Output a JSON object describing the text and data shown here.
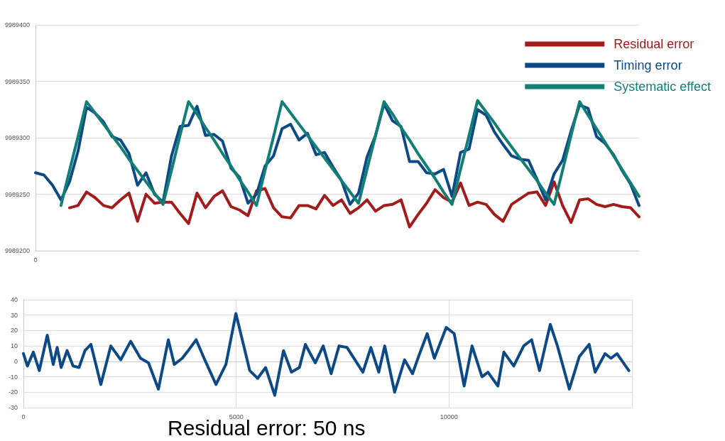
{
  "chart_data": [
    {
      "type": "line",
      "categories": [
        "0",
        null,
        null,
        null,
        null,
        null,
        null,
        null,
        null,
        null,
        null,
        null,
        null,
        null,
        null,
        null,
        null,
        null,
        null,
        null,
        null,
        null,
        null,
        null,
        null,
        null,
        null,
        null,
        null,
        null,
        null,
        null,
        null,
        null,
        null,
        null,
        null,
        null,
        null,
        null,
        null,
        null,
        null,
        null,
        null,
        null,
        null,
        null,
        null,
        null,
        null,
        null,
        null,
        null,
        null,
        null,
        null,
        null,
        null,
        null,
        null,
        null,
        null,
        null,
        null,
        null,
        null,
        null,
        null,
        null,
        null,
        null
      ],
      "ylim": [
        9989200,
        9989400
      ],
      "yticks": [
        9989200,
        9989250,
        9989300,
        9989350,
        9989400
      ],
      "grid": "y",
      "legend": "top right",
      "marker": "none",
      "series": [
        {
          "name": "Residual error",
          "color": "#a31c1c",
          "values": [
            null,
            null,
            null,
            null,
            9989238,
            9989240,
            9989252,
            9989247,
            9989240,
            9989238,
            9989245,
            9989251,
            9989226,
            9989250,
            9989242,
            9989243,
            9989243,
            9989233,
            9989224,
            9989251,
            9989238,
            9989248,
            9989253,
            9989239,
            9989236,
            9989231,
            9989253,
            9989255,
            9989238,
            9989230,
            9989229,
            9989240,
            9989240,
            9989237,
            9989249,
            9989240,
            9989245,
            9989233,
            9989238,
            9989245,
            9989235,
            9989240,
            9989241,
            9989245,
            9989221,
            9989232,
            9989242,
            9989254,
            9989247,
            9989243,
            9989260,
            9989240,
            9989243,
            9989241,
            9989232,
            9989226,
            9989241,
            9989246,
            9989251,
            9989252,
            9989240,
            9989261,
            9989240,
            9989225,
            9989245,
            9989246,
            9989241,
            9989239,
            9989241,
            9989239,
            9989238,
            9989230
          ]
        },
        {
          "name": "Timing error",
          "color": "#0d4a85",
          "values": [
            9989269,
            9989267,
            9989258,
            9989245,
            9989261,
            9989288,
            9989327,
            9989322,
            9989314,
            9989301,
            9989298,
            9989286,
            9989258,
            9989269,
            9989250,
            9989243,
            9989284,
            9989310,
            9989311,
            9989328,
            9989302,
            9989303,
            9989297,
            9989273,
            9989265,
            9989242,
            9989250,
            9989275,
            9989284,
            9989308,
            9989312,
            9989298,
            9989304,
            9989285,
            9989287,
            9989274,
            9989262,
            9989241,
            9989251,
            9989283,
            9989302,
            9989330,
            9989315,
            9989310,
            9989279,
            9989279,
            9989269,
            9989268,
            9989272,
            9989248,
            9989287,
            9989290,
            9989325,
            9989320,
            9989305,
            9989294,
            9989284,
            9989281,
            9989280,
            9989263,
            9989245,
            9989268,
            9989280,
            9989306,
            9989329,
            9989326,
            9989301,
            9989295,
            9989285,
            9989271,
            9989259,
            9989240
          ]
        },
        {
          "name": "Systematic effect",
          "color": "#127f77",
          "values": [
            null,
            null,
            null,
            9989240,
            9989271,
            9989301,
            9989332,
            9989322,
            9989312,
            9989302,
            9989292,
            9989281,
            9989271,
            9989261,
            9989251,
            9989241,
            9989271,
            9989302,
            9989332,
            9989321,
            9989309,
            9989298,
            9989286,
            9989275,
            9989263,
            9989252,
            9989240,
            9989271,
            9989301,
            9989332,
            9989322,
            9989312,
            9989302,
            9989292,
            9989282,
            9989272,
            9989262,
            9989252,
            9989242,
            9989272,
            9989302,
            9989332,
            9989321,
            9989309,
            9989298,
            9989286,
            9989275,
            9989264,
            9989252,
            9989241,
            9989272,
            9989302,
            9989333,
            9989323,
            9989313,
            9989302,
            9989292,
            9989282,
            9989272,
            9989262,
            9989251,
            9989241,
            9989271,
            9989302,
            9989332,
            9989320,
            9989308,
            9989296,
            9989284,
            9989272,
            9989260,
            9989248
          ]
        }
      ]
    },
    {
      "type": "line",
      "xlim": [
        0,
        14300
      ],
      "xticks": [
        0,
        5000,
        10000
      ],
      "ylim": [
        -30,
        40
      ],
      "yticks": [
        -30,
        -20,
        -10,
        0,
        10,
        20,
        30,
        40
      ],
      "grid": true,
      "legend": false,
      "marker": "none",
      "annotations": [
        "Residual error: 50 ns"
      ],
      "series": [
        {
          "color": "#0d4a85",
          "x": [
            0,
            93,
            233,
            373,
            560,
            700,
            793,
            887,
            1026,
            1166,
            1306,
            1446,
            1586,
            1819,
            2053,
            2286,
            2519,
            2752,
            2939,
            3172,
            3405,
            3545,
            3732,
            3872,
            4059,
            4245,
            4525,
            4758,
            4992,
            5178,
            5318,
            5505,
            5691,
            5906,
            6111,
            6298,
            6485,
            6625,
            6858,
            7044,
            7231,
            7417,
            7604,
            7790,
            7977,
            8164,
            8350,
            8490,
            8723,
            8957,
            9143,
            9283,
            9488,
            9656,
            9936,
            10122,
            10356,
            10542,
            10776,
            10916,
            11149,
            11289,
            11522,
            11755,
            11942,
            12128,
            12380,
            12548,
            12828,
            13061,
            13294,
            13434,
            13667,
            13807,
            13947,
            14227
          ],
          "values": [
            5,
            -3,
            6,
            -6,
            17,
            -2,
            9,
            -4,
            7,
            -3,
            -4,
            7,
            11,
            -15,
            10,
            1,
            13,
            2,
            -1,
            -18,
            14,
            -2,
            2,
            7,
            14,
            2,
            -15,
            -2,
            31,
            10,
            -6,
            -11,
            -4,
            -22,
            7,
            -7,
            -4,
            11,
            -1,
            10,
            -8,
            10,
            9,
            1,
            -7,
            9,
            -7,
            10,
            -20,
            1,
            -8,
            3,
            18,
            2,
            22,
            18,
            -16,
            10,
            -10,
            -7,
            -16,
            6,
            -3,
            10,
            14,
            -6,
            24,
            10,
            -18,
            3,
            11,
            -7,
            5,
            2,
            5,
            -6
          ]
        }
      ]
    }
  ]
}
